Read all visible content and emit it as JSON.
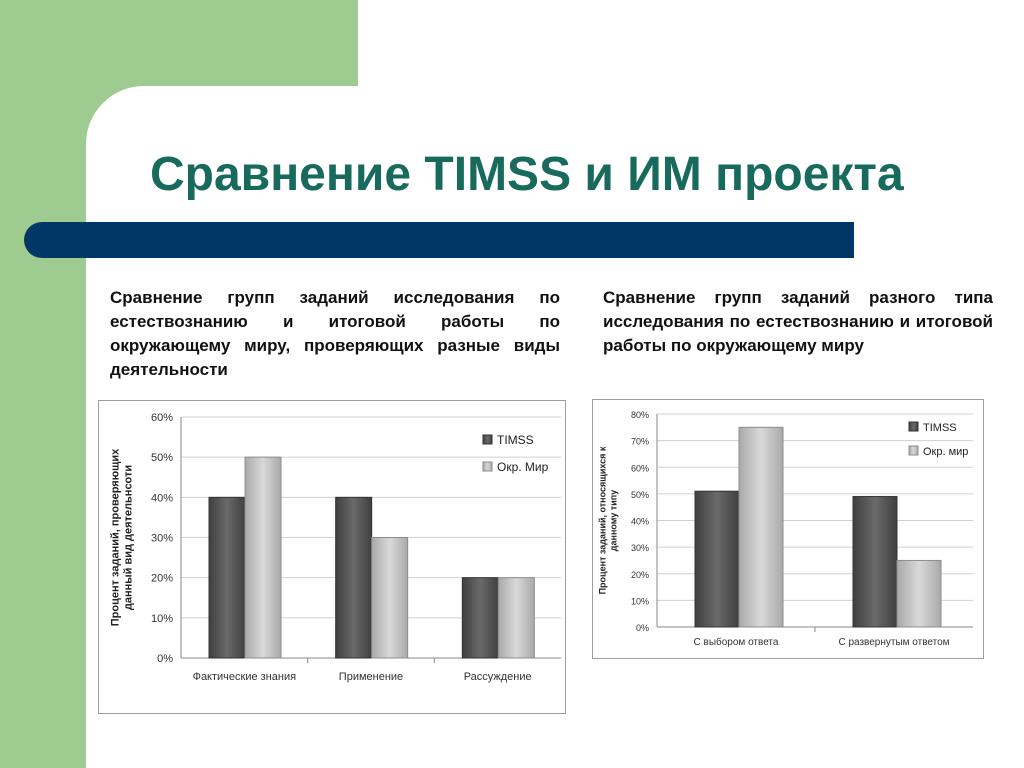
{
  "slide": {
    "title": "Сравнение TIMSS и ИМ проекта",
    "caption_left": "Сравнение групп заданий исследования по естествознанию и итоговой работы по окружающему миру, проверяющих разные виды деятельности",
    "caption_right": "Сравнение групп заданий  разного типа исследования по естествознанию и итоговой работы по окружающему миру",
    "colors": {
      "background_green": "#9dcb90",
      "title": "#176a5c",
      "divider": "#003767",
      "timss": "#555555",
      "okr": "#bfbfbf"
    }
  },
  "chart_data": [
    {
      "type": "bar",
      "categories": [
        "Фактические знания",
        "Применение",
        "Рассуждение"
      ],
      "series": [
        {
          "name": "TIMSS",
          "values": [
            40,
            40,
            20
          ]
        },
        {
          "name": "Окр. Мир",
          "values": [
            50,
            30,
            20
          ]
        }
      ],
      "ylabel": "Процент заданий, проверяющих данный вид деятельнсоти",
      "ylim": [
        0,
        60
      ],
      "yticks": [
        "0%",
        "10%",
        "20%",
        "30%",
        "40%",
        "50%",
        "60%"
      ],
      "grid": true,
      "legend": "right"
    },
    {
      "type": "bar",
      "categories": [
        "С выбором ответа",
        "С развернутым ответом"
      ],
      "series": [
        {
          "name": "TIMSS",
          "values": [
            51,
            49
          ]
        },
        {
          "name": "Окр. мир",
          "values": [
            75,
            25
          ]
        }
      ],
      "ylabel": "Процент заданий, относящихся к данному типу",
      "ylim": [
        0,
        80
      ],
      "yticks": [
        "0%",
        "10%",
        "20%",
        "30%",
        "40%",
        "50%",
        "60%",
        "70%",
        "80%"
      ],
      "grid": true,
      "legend": "right"
    }
  ]
}
